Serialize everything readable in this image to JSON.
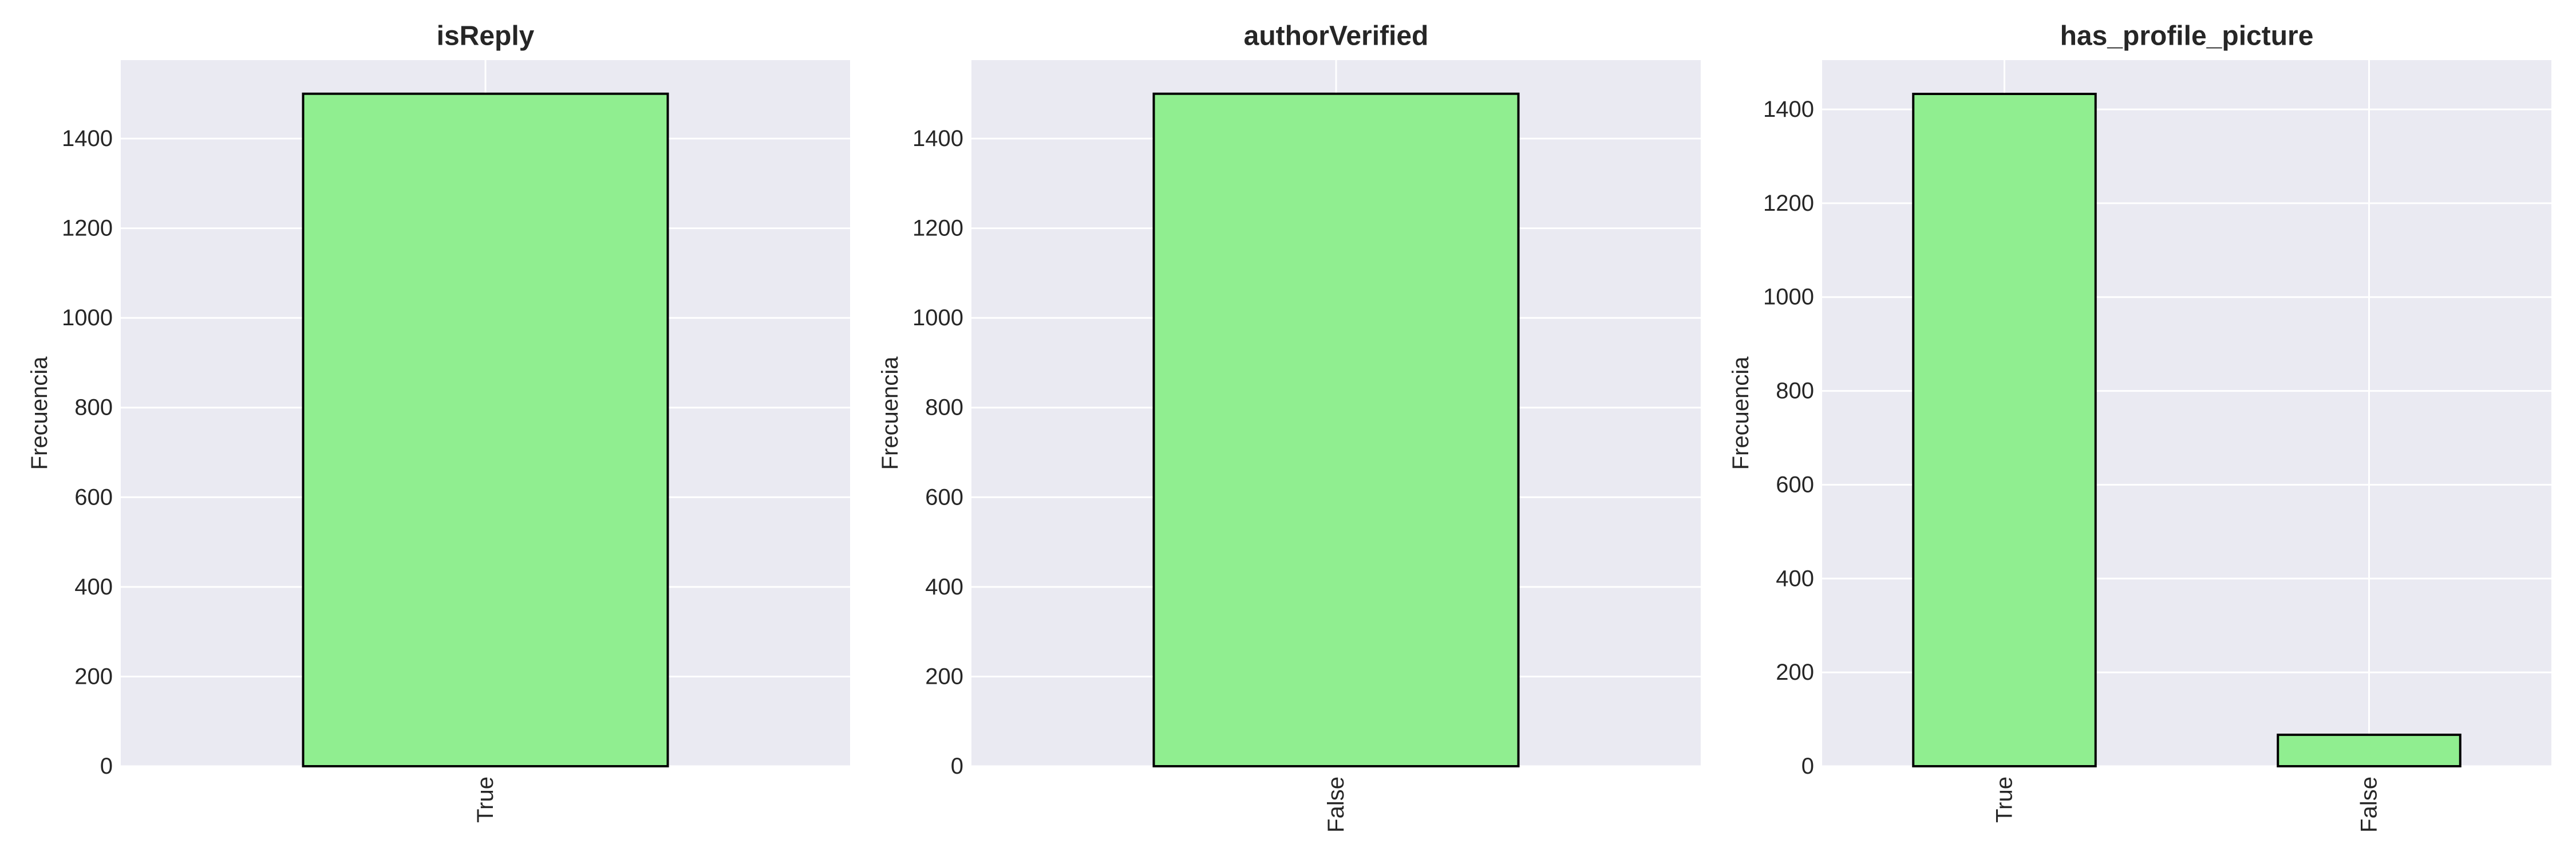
{
  "colors": {
    "bar_fill": "#90ee90",
    "bar_edge": "#000000",
    "panel_background": "#eaeaf2",
    "grid": "#ffffff",
    "text": "#262626"
  },
  "chart_data": [
    {
      "type": "bar",
      "title": "isReply",
      "xlabel": "",
      "ylabel": "Frecuencia",
      "categories": [
        "True"
      ],
      "values": [
        1500
      ],
      "ylim": [
        0,
        1575
      ],
      "yticks": [
        0,
        200,
        400,
        600,
        800,
        1000,
        1200,
        1400
      ],
      "grid": true,
      "bar_color": "#90ee90",
      "x_tick_rotation": 90
    },
    {
      "type": "bar",
      "title": "authorVerified",
      "xlabel": "",
      "ylabel": "Frecuencia",
      "categories": [
        "False"
      ],
      "values": [
        1500
      ],
      "ylim": [
        0,
        1575
      ],
      "yticks": [
        0,
        200,
        400,
        600,
        800,
        1000,
        1200,
        1400
      ],
      "grid": true,
      "bar_color": "#90ee90",
      "x_tick_rotation": 90
    },
    {
      "type": "bar",
      "title": "has_profile_picture",
      "xlabel": "",
      "ylabel": "Frecuencia",
      "categories": [
        "True",
        "False"
      ],
      "values": [
        1433,
        67
      ],
      "ylim": [
        0,
        1505
      ],
      "yticks": [
        0,
        200,
        400,
        600,
        800,
        1000,
        1200,
        1400
      ],
      "grid": true,
      "bar_color": "#90ee90",
      "x_tick_rotation": 90
    }
  ]
}
